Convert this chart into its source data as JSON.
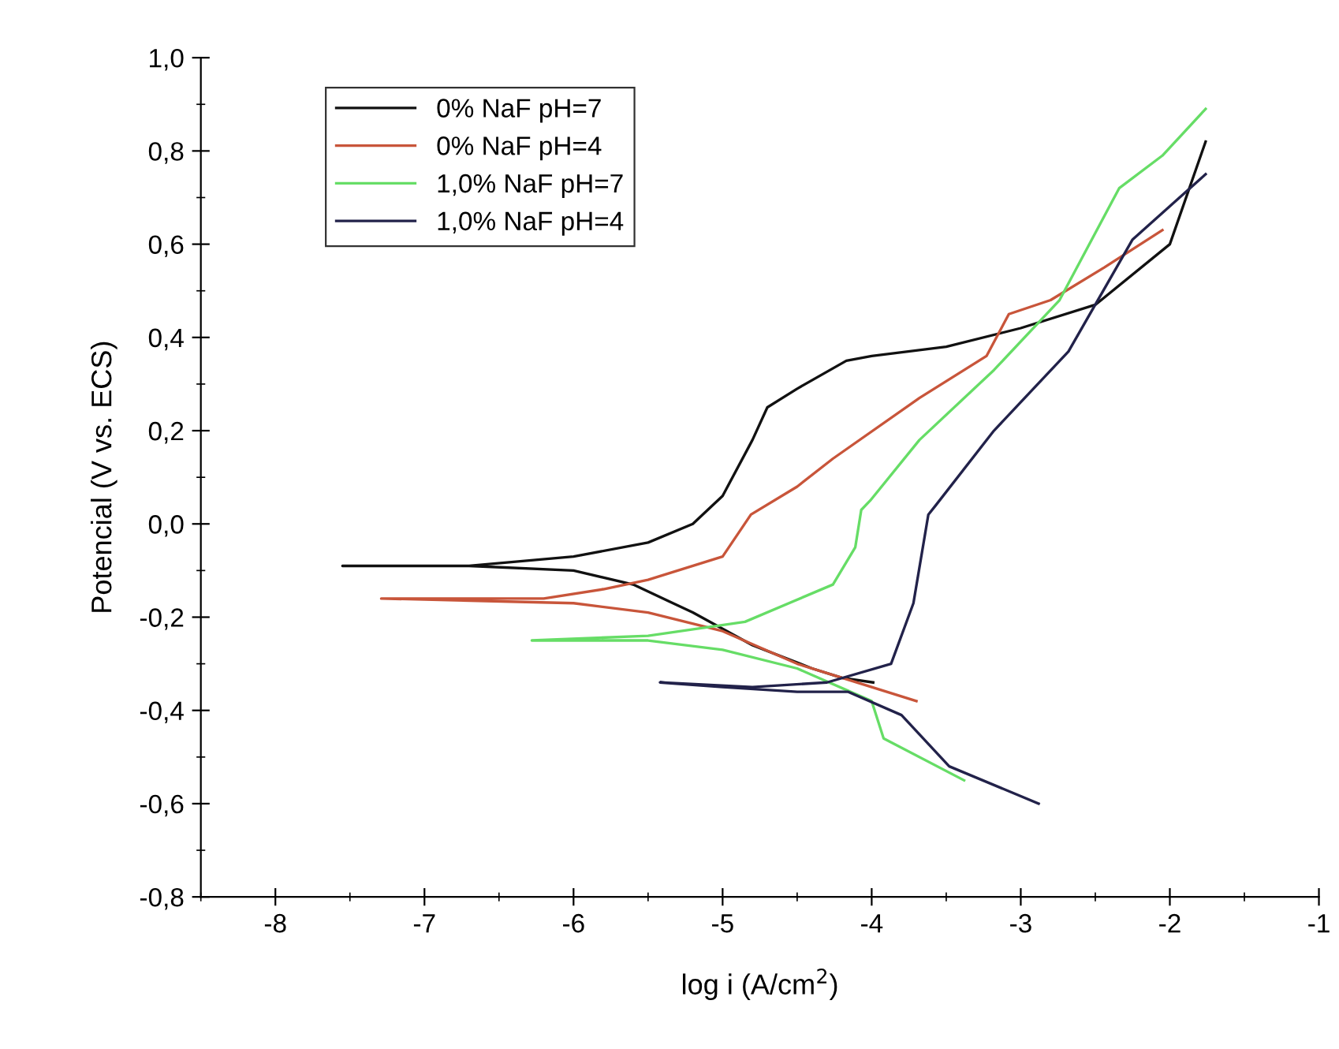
{
  "chart_data": {
    "type": "line",
    "xlabel": "log i (A/cm$^{2}$)",
    "ylabel": "Potencial (V vs. ECS)",
    "xlim": [
      -8.5,
      -1
    ],
    "xticks": [
      -8,
      -7,
      -6,
      -5,
      -4,
      -3,
      -2,
      -1
    ],
    "ylim": [
      -0.8,
      1.0
    ],
    "yticks": [
      {
        "value": -0.8,
        "label": "-0,8"
      },
      {
        "value": -0.6,
        "label": "-0,6"
      },
      {
        "value": -0.4,
        "label": "-0,4"
      },
      {
        "value": -0.2,
        "label": "-0,2"
      },
      {
        "value": 0.0,
        "label": "0,0"
      },
      {
        "value": 0.2,
        "label": "0,2"
      },
      {
        "value": 0.4,
        "label": "0,4"
      },
      {
        "value": 0.6,
        "label": "0,6"
      },
      {
        "value": 0.8,
        "label": "0,8"
      },
      {
        "value": 1.0,
        "label": "1,0"
      }
    ],
    "grid": false,
    "legend": "top left",
    "marker": "none",
    "line_style": "solid",
    "series": [
      {
        "name": "0% NaF pH=7",
        "color": "#111111",
        "x": [
          -3.99,
          -4.2,
          -4.4,
          -4.8,
          -5.2,
          -5.6,
          -6.0,
          -6.7,
          -7.55,
          -6.7,
          -6.0,
          -5.5,
          -5.2,
          -5.0,
          -4.8,
          -4.7,
          -4.5,
          -4.17,
          -4.0,
          -3.5,
          -3.0,
          -2.5,
          -2.0,
          -1.76
        ],
        "values": [
          -0.34,
          -0.33,
          -0.31,
          -0.26,
          -0.19,
          -0.13,
          -0.1,
          -0.09,
          -0.09,
          -0.09,
          -0.07,
          -0.04,
          0.0,
          0.06,
          0.18,
          0.25,
          0.29,
          0.35,
          0.36,
          0.38,
          0.42,
          0.47,
          0.6,
          0.82
        ]
      },
      {
        "name": "0% NaF pH=4",
        "color": "#c8553a",
        "x": [
          -3.7,
          -4.0,
          -4.5,
          -5.0,
          -5.5,
          -6.0,
          -7.29,
          -6.2,
          -5.8,
          -5.5,
          -5.0,
          -4.81,
          -4.5,
          -4.26,
          -3.68,
          -3.23,
          -3.08,
          -2.8,
          -2.44,
          -2.05
        ],
        "values": [
          -0.38,
          -0.35,
          -0.3,
          -0.23,
          -0.19,
          -0.17,
          -0.16,
          -0.16,
          -0.14,
          -0.12,
          -0.07,
          0.02,
          0.08,
          0.14,
          0.27,
          0.36,
          0.45,
          0.48,
          0.55,
          0.63
        ]
      },
      {
        "name": "1,0% NaF pH=7",
        "color": "#66dd66",
        "x": [
          -3.38,
          -3.92,
          -4.0,
          -4.5,
          -5.0,
          -5.5,
          -6.28,
          -5.5,
          -4.85,
          -4.26,
          -4.11,
          -4.07,
          -4.01,
          -3.68,
          -3.18,
          -2.74,
          -2.34,
          -2.05,
          -1.76
        ],
        "values": [
          -0.55,
          -0.46,
          -0.38,
          -0.31,
          -0.27,
          -0.25,
          -0.25,
          -0.24,
          -0.21,
          -0.13,
          -0.05,
          0.03,
          0.05,
          0.18,
          0.33,
          0.48,
          0.72,
          0.79,
          0.89
        ]
      },
      {
        "name": "1,0% NaF pH=4",
        "color": "#22224a",
        "x": [
          -2.88,
          -3.48,
          -3.8,
          -4.16,
          -4.5,
          -5.0,
          -5.42,
          -4.8,
          -4.3,
          -3.87,
          -3.72,
          -3.62,
          -3.57,
          -3.18,
          -2.68,
          -2.25,
          -1.76
        ],
        "values": [
          -0.6,
          -0.52,
          -0.41,
          -0.36,
          -0.36,
          -0.35,
          -0.34,
          -0.35,
          -0.34,
          -0.3,
          -0.17,
          0.02,
          0.04,
          0.2,
          0.37,
          0.61,
          0.75
        ]
      }
    ]
  }
}
